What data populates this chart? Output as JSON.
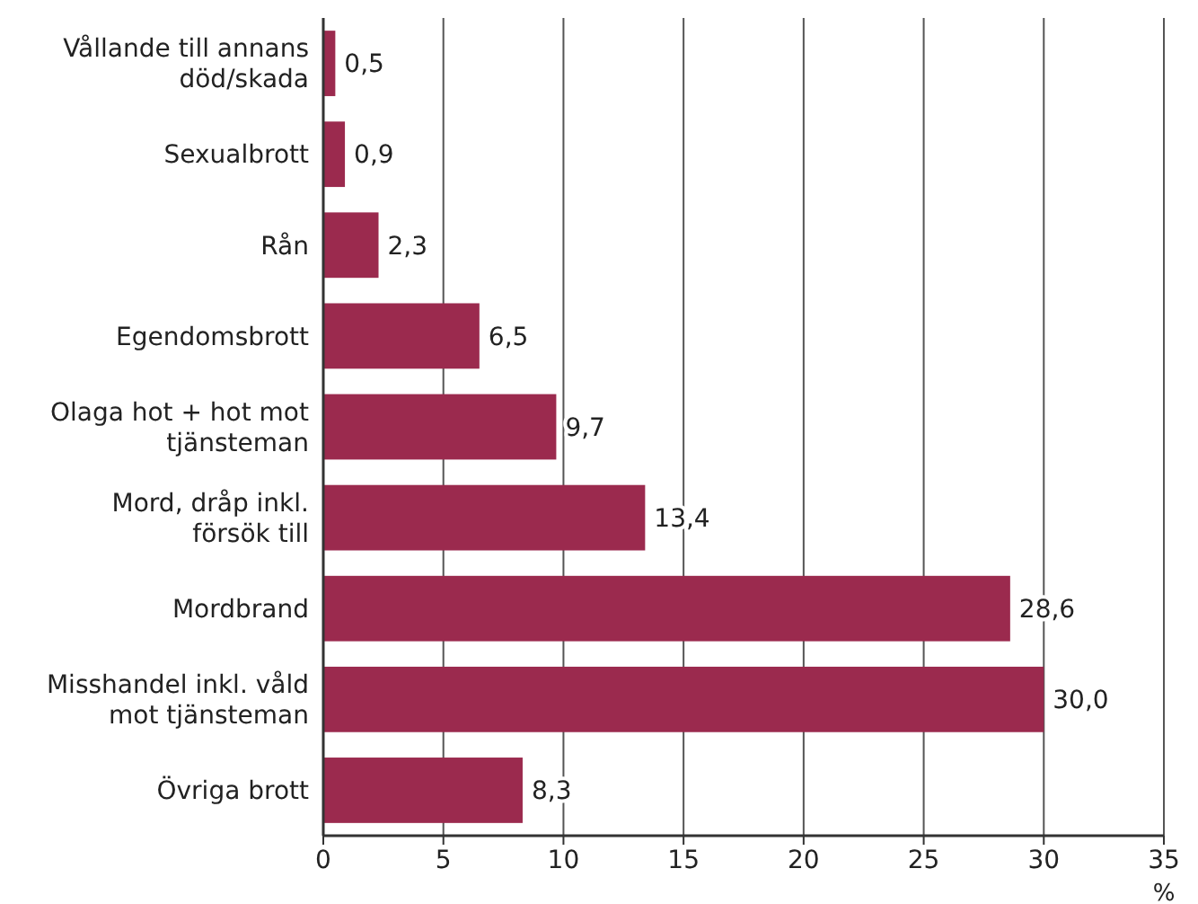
{
  "chart_data": {
    "type": "bar",
    "orientation": "horizontal",
    "xlabel": "%",
    "categories": [
      "Vållande till annans död/skada",
      "Sexualbrott",
      "Rån",
      "Egendomsbrott",
      "Olaga hot + hot mot tjänsteman",
      "Mord, dråp inkl. försök till",
      "Mordbrand",
      "Misshandel inkl. våld mot tjänsteman",
      "Övriga brott"
    ],
    "values": [
      0.5,
      0.9,
      2.3,
      6.5,
      9.7,
      13.4,
      28.6,
      30.0,
      8.3
    ],
    "value_labels": [
      "0,5",
      "0,9",
      "2,3",
      "6,5",
      "9,7",
      "13,4",
      "28,6",
      "30,0",
      "8,3"
    ],
    "color": "#9b2a4e",
    "xlim": [
      0,
      35
    ],
    "xticks": [
      0,
      5,
      10,
      15,
      20,
      25,
      30,
      35
    ],
    "grid": "x"
  }
}
